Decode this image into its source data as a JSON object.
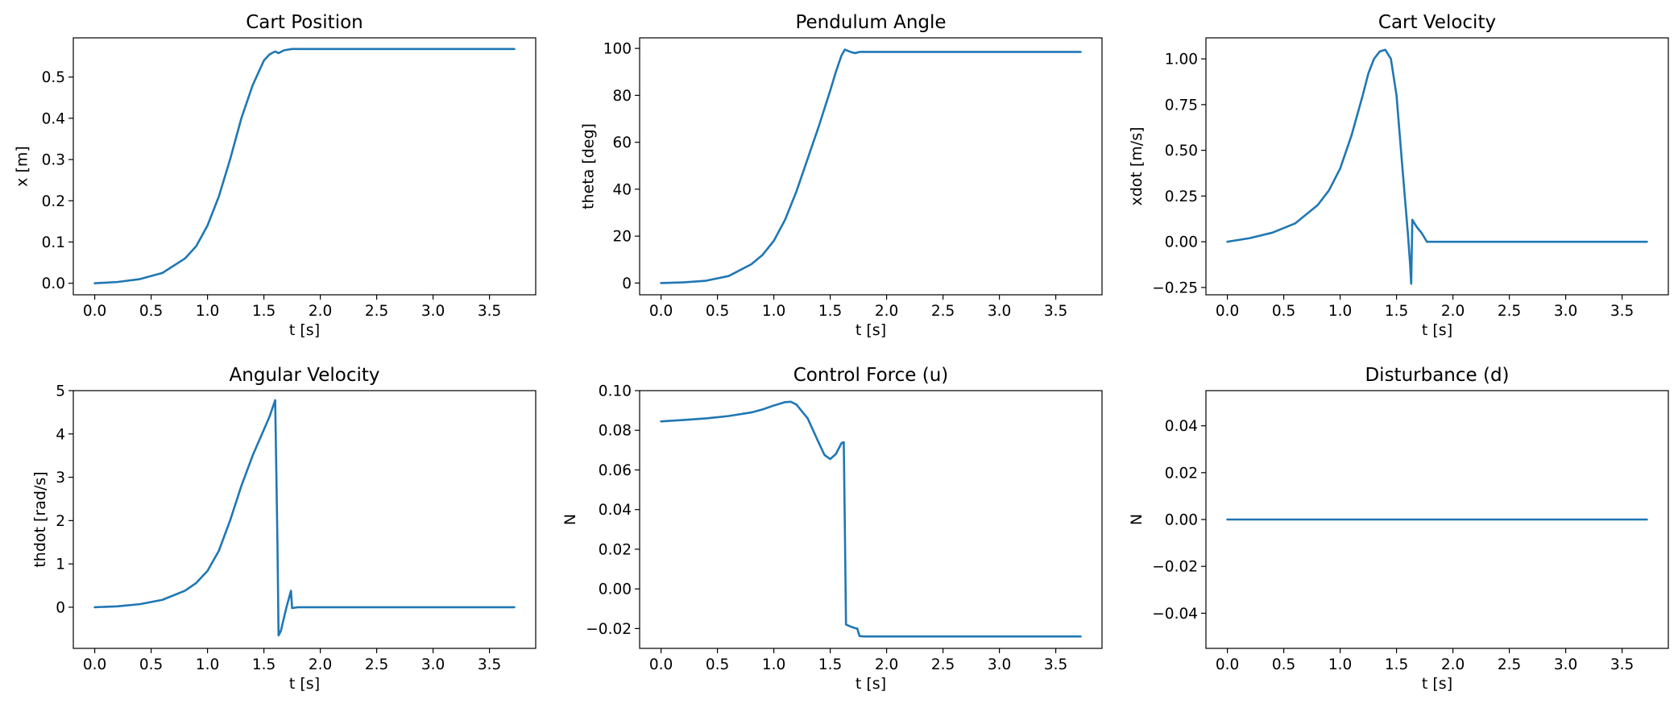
{
  "colors": {
    "line": "#1f77b4",
    "axes": "#000000",
    "background": "#ffffff"
  },
  "chart_data": [
    {
      "type": "line",
      "title": "Cart Position",
      "xlabel": "t [s]",
      "ylabel": "x [m]",
      "xlim": [
        -0.19,
        3.91
      ],
      "ylim": [
        -0.028,
        0.595
      ],
      "xticks": [
        0,
        0.5,
        1,
        1.5,
        2,
        2.5,
        3,
        3.5
      ],
      "xtick_labels": [
        "0.0",
        "0.5",
        "1.0",
        "1.5",
        "2.0",
        "2.5",
        "3.0",
        "3.5"
      ],
      "yticks": [
        0,
        0.1,
        0.2,
        0.3,
        0.4,
        0.5
      ],
      "ytick_labels": [
        "0.0",
        "0.1",
        "0.2",
        "0.3",
        "0.4",
        "0.5"
      ],
      "grid": false,
      "series": [
        {
          "x": [
            0,
            0.2,
            0.4,
            0.6,
            0.8,
            0.9,
            1.0,
            1.1,
            1.2,
            1.3,
            1.4,
            1.5,
            1.55,
            1.6,
            1.63,
            1.68,
            1.75,
            1.85,
            2.0,
            2.5,
            3.0,
            3.5,
            3.72
          ],
          "y": [
            0,
            0.003,
            0.01,
            0.025,
            0.06,
            0.09,
            0.14,
            0.21,
            0.3,
            0.4,
            0.48,
            0.54,
            0.555,
            0.562,
            0.558,
            0.565,
            0.568,
            0.568,
            0.568,
            0.568,
            0.568,
            0.568,
            0.568
          ]
        }
      ]
    },
    {
      "type": "line",
      "title": "Pendulum Angle",
      "xlabel": "t [s]",
      "ylabel": "theta [deg]",
      "xlim": [
        -0.19,
        3.91
      ],
      "ylim": [
        -5,
        104.5
      ],
      "xticks": [
        0,
        0.5,
        1,
        1.5,
        2,
        2.5,
        3,
        3.5
      ],
      "xtick_labels": [
        "0.0",
        "0.5",
        "1.0",
        "1.5",
        "2.0",
        "2.5",
        "3.0",
        "3.5"
      ],
      "yticks": [
        0,
        20,
        40,
        60,
        80,
        100
      ],
      "ytick_labels": [
        "0",
        "20",
        "40",
        "60",
        "80",
        "100"
      ],
      "grid": false,
      "series": [
        {
          "x": [
            0,
            0.2,
            0.4,
            0.6,
            0.8,
            0.9,
            1.0,
            1.1,
            1.2,
            1.3,
            1.4,
            1.5,
            1.55,
            1.6,
            1.63,
            1.68,
            1.72,
            1.76,
            1.85,
            2.0,
            2.5,
            3.0,
            3.5,
            3.72
          ],
          "y": [
            0,
            0.3,
            1,
            3,
            8,
            12,
            18,
            27,
            39,
            53,
            67,
            82,
            90,
            97,
            99.5,
            98.5,
            98,
            98.5,
            98.5,
            98.5,
            98.5,
            98.5,
            98.5,
            98.5
          ]
        }
      ]
    },
    {
      "type": "line",
      "title": "Cart Velocity",
      "xlabel": "t [s]",
      "ylabel": "xdot [m/s]",
      "xlim": [
        -0.19,
        3.91
      ],
      "ylim": [
        -0.29,
        1.115
      ],
      "xticks": [
        0,
        0.5,
        1,
        1.5,
        2,
        2.5,
        3,
        3.5
      ],
      "xtick_labels": [
        "0.0",
        "0.5",
        "1.0",
        "1.5",
        "2.0",
        "2.5",
        "3.0",
        "3.5"
      ],
      "yticks": [
        -0.25,
        0,
        0.25,
        0.5,
        0.75,
        1.0
      ],
      "ytick_labels": [
        "−0.25",
        "0.00",
        "0.25",
        "0.50",
        "0.75",
        "1.00"
      ],
      "grid": false,
      "series": [
        {
          "x": [
            0,
            0.2,
            0.4,
            0.6,
            0.8,
            0.9,
            1.0,
            1.1,
            1.2,
            1.25,
            1.3,
            1.35,
            1.4,
            1.45,
            1.5,
            1.55,
            1.6,
            1.62,
            1.63,
            1.64,
            1.68,
            1.72,
            1.75,
            1.77,
            1.8,
            1.9,
            2.0,
            2.5,
            3.0,
            3.5,
            3.72
          ],
          "y": [
            0,
            0.02,
            0.05,
            0.1,
            0.2,
            0.28,
            0.4,
            0.58,
            0.8,
            0.92,
            1.0,
            1.04,
            1.05,
            1.0,
            0.8,
            0.42,
            0.05,
            -0.12,
            -0.23,
            0.12,
            0.08,
            0.05,
            0.02,
            0,
            0,
            0,
            0,
            0,
            0,
            0,
            0
          ]
        }
      ]
    },
    {
      "type": "line",
      "title": "Angular Velocity",
      "xlabel": "t [s]",
      "ylabel": "thdot [rad/s]",
      "xlim": [
        -0.19,
        3.91
      ],
      "ylim": [
        -0.95,
        5.0
      ],
      "xticks": [
        0,
        0.5,
        1,
        1.5,
        2,
        2.5,
        3,
        3.5
      ],
      "xtick_labels": [
        "0.0",
        "0.5",
        "1.0",
        "1.5",
        "2.0",
        "2.5",
        "3.0",
        "3.5"
      ],
      "yticks": [
        0,
        1,
        2,
        3,
        4,
        5
      ],
      "ytick_labels": [
        "0",
        "1",
        "2",
        "3",
        "4",
        "5"
      ],
      "grid": false,
      "series": [
        {
          "x": [
            0,
            0.2,
            0.4,
            0.6,
            0.8,
            0.9,
            1.0,
            1.1,
            1.2,
            1.3,
            1.4,
            1.5,
            1.55,
            1.6,
            1.62,
            1.63,
            1.65,
            1.7,
            1.74,
            1.75,
            1.8,
            1.9,
            2.0,
            2.5,
            3.0,
            3.5,
            3.72
          ],
          "y": [
            0,
            0.02,
            0.07,
            0.17,
            0.38,
            0.56,
            0.84,
            1.3,
            2.0,
            2.8,
            3.5,
            4.1,
            4.4,
            4.78,
            1.5,
            -0.65,
            -0.55,
            0.0,
            0.38,
            -0.02,
            0,
            0,
            0,
            0,
            0,
            0,
            0
          ]
        }
      ]
    },
    {
      "type": "line",
      "title": "Control Force (u)",
      "xlabel": "t [s]",
      "ylabel": "N",
      "xlim": [
        -0.19,
        3.91
      ],
      "ylim": [
        -0.03,
        0.1
      ],
      "xticks": [
        0,
        0.5,
        1,
        1.5,
        2,
        2.5,
        3,
        3.5
      ],
      "xtick_labels": [
        "0.0",
        "0.5",
        "1.0",
        "1.5",
        "2.0",
        "2.5",
        "3.0",
        "3.5"
      ],
      "yticks": [
        -0.02,
        0,
        0.02,
        0.04,
        0.06,
        0.08,
        0.1
      ],
      "ytick_labels": [
        "−0.02",
        "0.00",
        "0.02",
        "0.04",
        "0.06",
        "0.08",
        "0.10"
      ],
      "grid": false,
      "series": [
        {
          "x": [
            0,
            0.2,
            0.4,
            0.6,
            0.8,
            0.9,
            1.0,
            1.1,
            1.15,
            1.2,
            1.3,
            1.4,
            1.45,
            1.5,
            1.55,
            1.6,
            1.62,
            1.63,
            1.64,
            1.68,
            1.72,
            1.74,
            1.76,
            1.8,
            2.0,
            2.5,
            3.0,
            3.5,
            3.72
          ],
          "y": [
            0.0845,
            0.0852,
            0.086,
            0.0872,
            0.089,
            0.0905,
            0.0925,
            0.0942,
            0.0944,
            0.093,
            0.086,
            0.0735,
            0.0675,
            0.0655,
            0.068,
            0.0735,
            0.074,
            0.03,
            -0.018,
            -0.019,
            -0.0198,
            -0.02,
            -0.0238,
            -0.024,
            -0.024,
            -0.024,
            -0.024,
            -0.024,
            -0.024
          ]
        }
      ]
    },
    {
      "type": "line",
      "title": "Disturbance (d)",
      "xlabel": "t [s]",
      "ylabel": "N",
      "xlim": [
        -0.19,
        3.91
      ],
      "ylim": [
        -0.055,
        0.055
      ],
      "xticks": [
        0,
        0.5,
        1,
        1.5,
        2,
        2.5,
        3,
        3.5
      ],
      "xtick_labels": [
        "0.0",
        "0.5",
        "1.0",
        "1.5",
        "2.0",
        "2.5",
        "3.0",
        "3.5"
      ],
      "yticks": [
        -0.04,
        -0.02,
        0,
        0.02,
        0.04
      ],
      "ytick_labels": [
        "−0.04",
        "−0.02",
        "0.00",
        "0.02",
        "0.04"
      ],
      "grid": false,
      "series": [
        {
          "x": [
            0,
            3.72
          ],
          "y": [
            0,
            0
          ]
        }
      ]
    }
  ]
}
